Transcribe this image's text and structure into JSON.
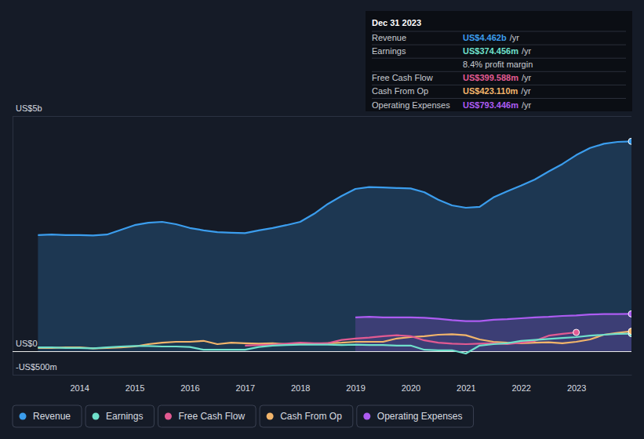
{
  "chart_data": {
    "type": "line",
    "x": [
      2013.25,
      2013.5,
      2013.75,
      2014,
      2014.25,
      2014.5,
      2014.75,
      2015,
      2015.25,
      2015.5,
      2015.75,
      2016,
      2016.25,
      2016.5,
      2016.75,
      2017,
      2017.25,
      2017.5,
      2017.75,
      2018,
      2018.25,
      2018.5,
      2018.75,
      2019,
      2019.25,
      2019.5,
      2019.75,
      2020,
      2020.25,
      2020.5,
      2020.75,
      2021,
      2021.25,
      2021.5,
      2021.75,
      2022,
      2022.25,
      2022.5,
      2022.75,
      2023,
      2023.25,
      2023.5,
      2023.75,
      2024
    ],
    "xlim": [
      2012.79,
      2024.0
    ],
    "xticks": [
      2014,
      2015,
      2016,
      2017,
      2018,
      2019,
      2020,
      2021,
      2022,
      2023
    ],
    "ylim": [
      -0.5,
      5
    ],
    "yticks": [
      {
        "value": 5,
        "label": "US$5b"
      },
      {
        "value": 0,
        "label": "US$0"
      },
      {
        "value": -0.5,
        "label": "-US$500m"
      }
    ],
    "grid": true,
    "legend": "bottom",
    "series": [
      {
        "name": "Revenue",
        "color": "#3b9ded",
        "type": "area",
        "values": [
          2.47,
          2.48,
          2.47,
          2.47,
          2.46,
          2.48,
          2.58,
          2.68,
          2.73,
          2.75,
          2.7,
          2.62,
          2.57,
          2.53,
          2.52,
          2.51,
          2.57,
          2.62,
          2.68,
          2.75,
          2.92,
          3.13,
          3.3,
          3.45,
          3.49,
          3.48,
          3.47,
          3.46,
          3.38,
          3.22,
          3.1,
          3.05,
          3.07,
          3.27,
          3.4,
          3.52,
          3.65,
          3.82,
          3.98,
          4.17,
          4.32,
          4.41,
          4.45,
          4.462
        ]
      },
      {
        "name": "Earnings",
        "color": "#6fe0cb",
        "type": "line",
        "values": [
          0.08,
          0.08,
          0.07,
          0.07,
          0.06,
          0.08,
          0.1,
          0.11,
          0.11,
          0.1,
          0.1,
          0.09,
          0.03,
          0.03,
          0.03,
          0.03,
          0.09,
          0.12,
          0.13,
          0.14,
          0.14,
          0.14,
          0.13,
          0.14,
          0.13,
          0.13,
          0.12,
          0.12,
          0.03,
          0.02,
          0.02,
          -0.05,
          0.12,
          0.15,
          0.17,
          0.22,
          0.24,
          0.26,
          0.28,
          0.3,
          0.33,
          0.35,
          0.37,
          0.374456
        ]
      },
      {
        "name": "Free Cash Flow",
        "color": "#e25a92",
        "type": "line",
        "values": [
          null,
          null,
          null,
          null,
          null,
          null,
          null,
          null,
          null,
          null,
          null,
          null,
          null,
          null,
          null,
          0.12,
          0.13,
          0.14,
          0.16,
          0.18,
          0.17,
          0.17,
          0.24,
          0.27,
          0.29,
          0.32,
          0.34,
          0.32,
          0.23,
          0.18,
          0.16,
          0.15,
          0.16,
          0.17,
          0.15,
          0.18,
          0.22,
          0.33,
          0.37,
          0.399588,
          null,
          null,
          null,
          null
        ]
      },
      {
        "name": "Cash From Op",
        "color": "#f2b56b",
        "type": "line",
        "values": [
          0.07,
          0.07,
          0.08,
          0.08,
          0.06,
          0.07,
          0.08,
          0.1,
          0.15,
          0.18,
          0.2,
          0.2,
          0.22,
          0.15,
          0.18,
          0.17,
          0.16,
          0.17,
          0.15,
          0.15,
          0.16,
          0.17,
          0.18,
          0.2,
          0.2,
          0.2,
          0.27,
          0.3,
          0.32,
          0.35,
          0.36,
          0.34,
          0.25,
          0.2,
          0.18,
          0.17,
          0.18,
          0.19,
          0.17,
          0.2,
          0.25,
          0.35,
          0.39,
          0.42311
        ]
      },
      {
        "name": "Operating Expenses",
        "color": "#ad5cf2",
        "type": "area",
        "values": [
          null,
          null,
          null,
          null,
          null,
          null,
          null,
          null,
          null,
          null,
          null,
          null,
          null,
          null,
          null,
          null,
          null,
          null,
          null,
          null,
          null,
          null,
          null,
          0.72,
          0.73,
          0.72,
          0.72,
          0.72,
          0.71,
          0.69,
          0.66,
          0.64,
          0.64,
          0.67,
          0.68,
          0.7,
          0.72,
          0.73,
          0.75,
          0.76,
          0.78,
          0.79,
          0.79,
          0.793446
        ]
      }
    ],
    "tooltip": {
      "title": "Dec 31 2023",
      "rows": [
        {
          "label": "Revenue",
          "value": "US$4.462b",
          "unit": "/yr"
        },
        {
          "label": "Earnings",
          "value": "US$374.456m",
          "unit": "/yr",
          "note": "8.4% profit margin"
        },
        {
          "label": "Free Cash Flow",
          "value": "US$399.588m",
          "unit": "/yr"
        },
        {
          "label": "Cash From Op",
          "value": "US$423.110m",
          "unit": "/yr"
        },
        {
          "label": "Operating Expenses",
          "value": "US$793.446m",
          "unit": "/yr"
        }
      ]
    }
  }
}
